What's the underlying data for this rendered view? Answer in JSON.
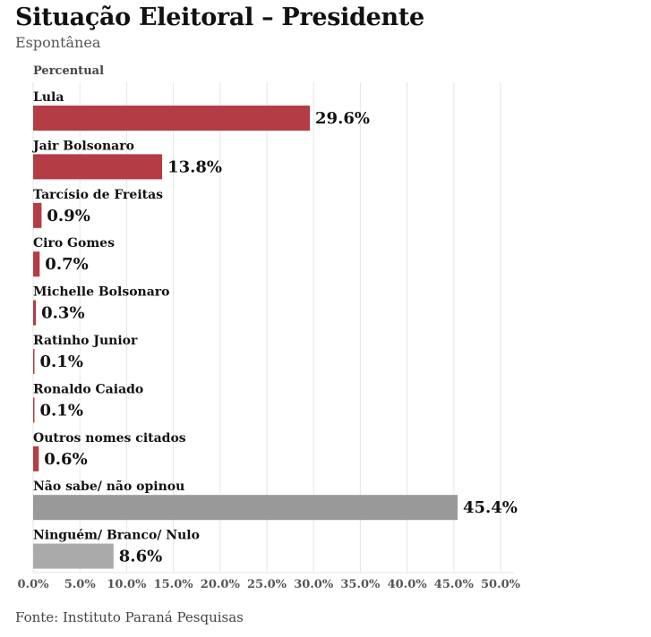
{
  "chart_data": {
    "type": "bar",
    "orientation": "horizontal",
    "title": "Situação Eleitoral – Presidente",
    "subtitle": "Espontânea",
    "ylabel": "Percentual",
    "xlabel": "",
    "source": "Fonte: Instituto Paraná Pesquisas",
    "xlim": [
      0,
      50
    ],
    "grid": true,
    "ticks": [
      "0.0%",
      "5.0%",
      "10.0%",
      "15.0%",
      "20.0%",
      "25.0%",
      "30.0%",
      "35.0%",
      "40.0%",
      "45.0%",
      "50.0%"
    ],
    "tick_values": [
      0,
      5,
      10,
      15,
      20,
      25,
      30,
      35,
      40,
      45,
      50
    ],
    "categories": [
      "Lula",
      "Jair Bolsonaro",
      "Tarcísio de Freitas",
      "Ciro Gomes",
      "Michelle Bolsonaro",
      "Ratinho Junior",
      "Ronaldo Caiado",
      "Outros nomes citados",
      "Não sabe/ não opinou",
      "Ninguém/ Branco/ Nulo"
    ],
    "values": [
      29.6,
      13.8,
      0.9,
      0.7,
      0.3,
      0.1,
      0.1,
      0.6,
      45.4,
      8.6
    ],
    "value_labels": [
      "29.6%",
      "13.8%",
      "0.9%",
      "0.7%",
      "0.3%",
      "0.1%",
      "0.1%",
      "0.6%",
      "45.4%",
      "8.6%"
    ],
    "colors": [
      "#b43c44",
      "#b43c44",
      "#b43c44",
      "#b43c44",
      "#b43c44",
      "#b43c44",
      "#b43c44",
      "#b43c44",
      "#999999",
      "#aaaaaa"
    ]
  }
}
